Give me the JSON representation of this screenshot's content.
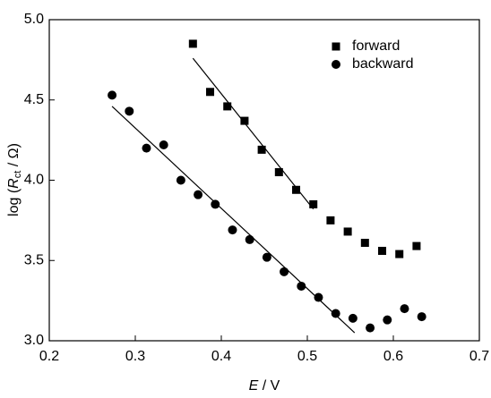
{
  "chart_data": {
    "type": "scatter",
    "xlabel": [
      "E",
      " / V"
    ],
    "ylabel": [
      "log (",
      "R",
      "ct",
      " / Ω)"
    ],
    "xlim": [
      0.2,
      0.7
    ],
    "xticks": [
      0.2,
      0.3,
      0.4,
      0.5,
      0.6,
      0.7
    ],
    "ylim": [
      3.0,
      5.0
    ],
    "yticks": [
      {
        "value": 3.0,
        "label": "3.0"
      },
      3.5,
      {
        "value": 4.0,
        "label": "4.0"
      },
      4.5,
      {
        "value": 5.0,
        "label": "5.0"
      }
    ],
    "legend": "upper right",
    "series": [
      {
        "name": "forward",
        "marker": "square",
        "color": "#000000",
        "x": [
          0.367,
          0.387,
          0.407,
          0.427,
          0.447,
          0.467,
          0.487,
          0.507,
          0.527,
          0.547,
          0.567,
          0.587,
          0.607,
          0.627
        ],
        "values": [
          4.85,
          4.55,
          4.46,
          4.37,
          4.19,
          4.05,
          3.94,
          3.85,
          3.75,
          3.68,
          3.61,
          3.56,
          3.54,
          3.59
        ],
        "fit": {
          "x": [
            0.367,
            0.507
          ],
          "values": [
            4.76,
            3.82
          ]
        }
      },
      {
        "name": "backward",
        "marker": "circle",
        "color": "#000000",
        "x": [
          0.273,
          0.293,
          0.313,
          0.333,
          0.353,
          0.373,
          0.393,
          0.413,
          0.433,
          0.453,
          0.473,
          0.493,
          0.513,
          0.533,
          0.553,
          0.573,
          0.593,
          0.613,
          0.633
        ],
        "values": [
          4.53,
          4.43,
          4.2,
          4.22,
          4.0,
          3.91,
          3.85,
          3.69,
          3.63,
          3.52,
          3.43,
          3.34,
          3.27,
          3.17,
          3.14,
          3.08,
          3.13,
          3.2,
          3.15
        ],
        "fit": {
          "x": [
            0.273,
            0.555
          ],
          "values": [
            4.46,
            3.05
          ]
        }
      }
    ]
  }
}
